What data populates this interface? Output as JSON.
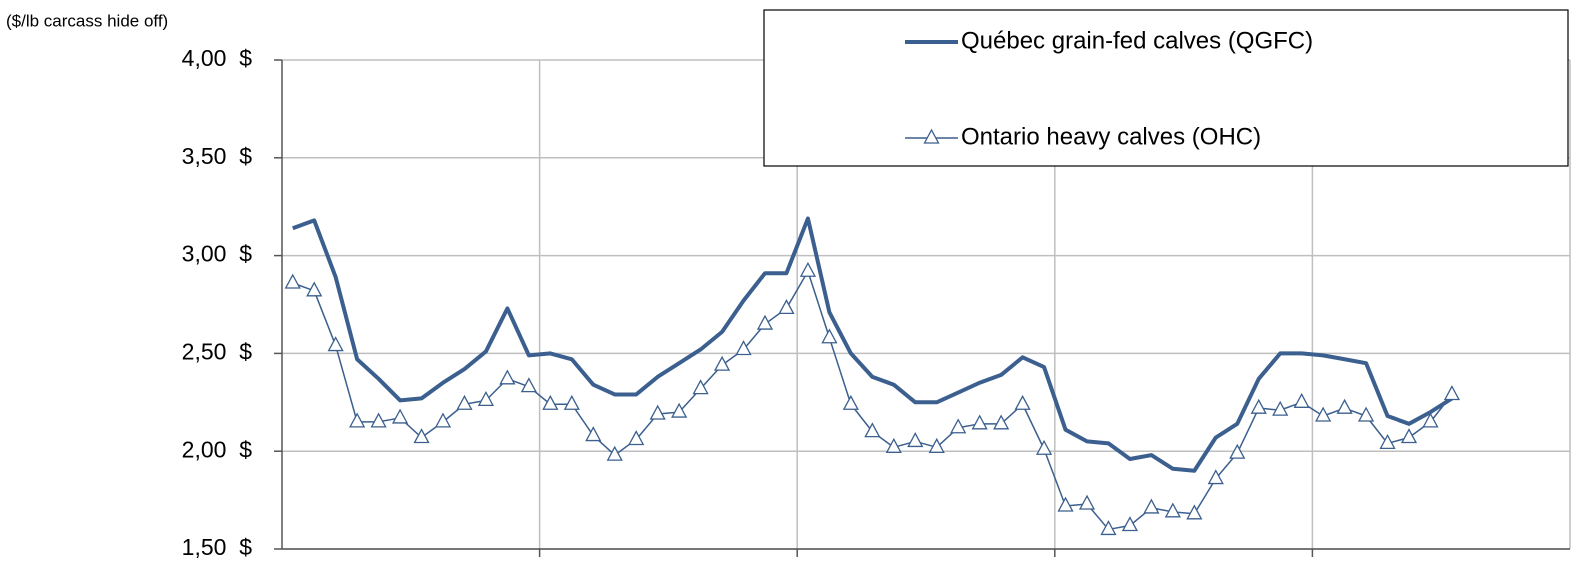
{
  "chart_data": {
    "type": "line",
    "ylabel": "($/lb carcass hide off)",
    "x": [
      0,
      1,
      2,
      3,
      4,
      5,
      6,
      7,
      8,
      9,
      10,
      11,
      12,
      13,
      14,
      15,
      16,
      17,
      18,
      19,
      20,
      21,
      22,
      23,
      24,
      25,
      26,
      27,
      28,
      29,
      30,
      31,
      32,
      33,
      34,
      35,
      36,
      37,
      38,
      39,
      40,
      41,
      42,
      43,
      44,
      45,
      46,
      47,
      48,
      49,
      50,
      51,
      52,
      53,
      54
    ],
    "xlim": [
      -0.5,
      59.5
    ],
    "xticks": [
      11.5,
      23.5,
      35.5,
      47.5
    ],
    "ylim": [
      1.5,
      4.0
    ],
    "yticks": [
      {
        "value": 1.5,
        "label": "1,50  $"
      },
      {
        "value": 2.0,
        "label": "2,00  $"
      },
      {
        "value": 2.5,
        "label": "2,50  $"
      },
      {
        "value": 3.0,
        "label": "3,00  $"
      },
      {
        "value": 3.5,
        "label": "3,50  $"
      },
      {
        "value": 4.0,
        "label": "4,00  $"
      }
    ],
    "grid": true,
    "legend": "upper right",
    "series": [
      {
        "name": "Québec grain-fed calves (QGFC)",
        "color": "#3b5f8e",
        "width": 4,
        "marker": "none",
        "values": [
          3.14,
          3.18,
          2.89,
          2.47,
          2.37,
          2.26,
          2.27,
          2.35,
          2.42,
          2.51,
          2.73,
          2.49,
          2.5,
          2.47,
          2.34,
          2.29,
          2.29,
          2.38,
          2.45,
          2.52,
          2.61,
          2.77,
          2.91,
          2.91,
          3.19,
          2.71,
          2.5,
          2.38,
          2.34,
          2.25,
          2.25,
          2.3,
          2.35,
          2.39,
          2.48,
          2.43,
          2.11,
          2.05,
          2.04,
          1.96,
          1.98,
          1.91,
          1.9,
          2.07,
          2.14,
          2.37,
          2.5,
          2.5,
          2.49,
          2.47,
          2.45,
          2.18,
          2.14,
          2.2,
          2.27
        ]
      },
      {
        "name": "Ontario heavy calves (OHC)",
        "color": "#3b5f8e",
        "width": 1.5,
        "marker": "triangle",
        "values": [
          2.86,
          2.82,
          2.54,
          2.15,
          2.15,
          2.17,
          2.07,
          2.15,
          2.24,
          2.26,
          2.37,
          2.33,
          2.24,
          2.24,
          2.08,
          1.98,
          2.06,
          2.19,
          2.2,
          2.32,
          2.44,
          2.52,
          2.65,
          2.73,
          2.92,
          2.58,
          2.24,
          2.1,
          2.02,
          2.05,
          2.02,
          2.12,
          2.14,
          2.14,
          2.24,
          2.01,
          1.72,
          1.73,
          1.6,
          1.62,
          1.71,
          1.69,
          1.68,
          1.86,
          1.99,
          2.22,
          2.21,
          2.25,
          2.18,
          2.22,
          2.18,
          2.04,
          2.07,
          2.15,
          2.29
        ]
      }
    ]
  }
}
